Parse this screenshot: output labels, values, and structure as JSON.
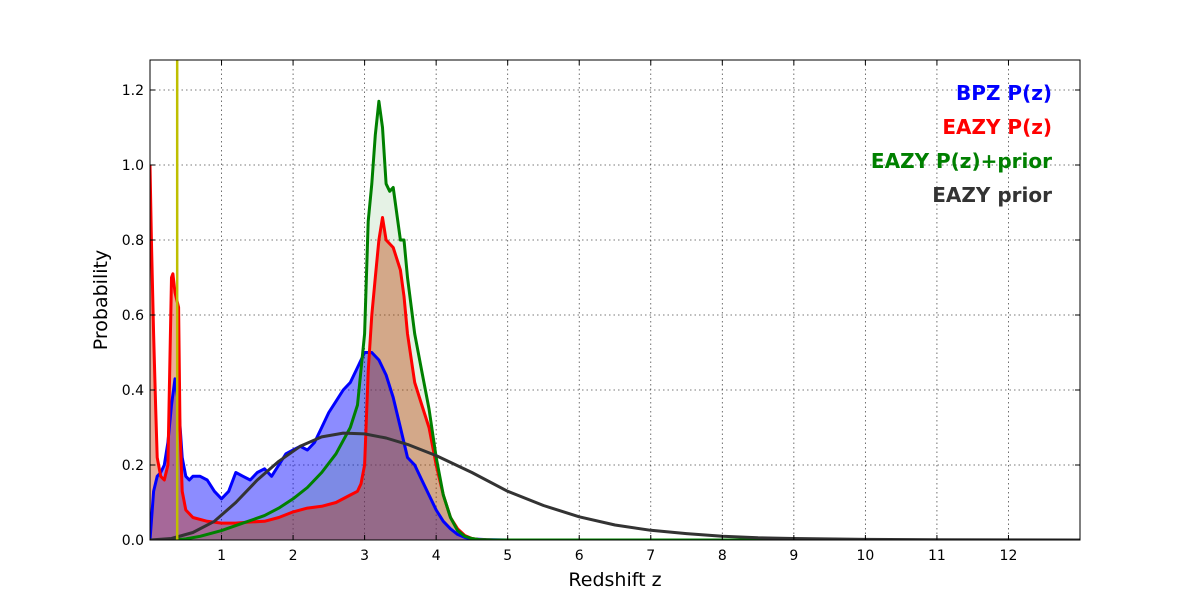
{
  "chart_data": {
    "type": "area",
    "xlabel": "Redshift z",
    "ylabel": "Probability",
    "xlim": [
      0,
      13
    ],
    "ylim": [
      0,
      1.28
    ],
    "x_ticks": [
      1,
      2,
      3,
      4,
      5,
      6,
      7,
      8,
      9,
      10,
      11,
      12
    ],
    "y_ticks": [
      0.0,
      0.2,
      0.4,
      0.6,
      0.8,
      1.0,
      1.2
    ],
    "y_tick_labels": [
      "0.0",
      "0.2",
      "0.4",
      "0.6",
      "0.8",
      "1.0",
      "1.2"
    ],
    "grid": true,
    "legend_placement": "top-right",
    "vline": {
      "x": 0.38,
      "color": "#bfbf00"
    },
    "series": [
      {
        "name": "BPZ P(z)",
        "color": "#0000ff",
        "fill": "#0000ff",
        "fill_opacity": 0.45,
        "x": [
          0,
          0.05,
          0.1,
          0.15,
          0.2,
          0.25,
          0.3,
          0.35,
          0.4,
          0.45,
          0.5,
          0.55,
          0.6,
          0.7,
          0.8,
          0.9,
          1.0,
          1.1,
          1.2,
          1.3,
          1.4,
          1.5,
          1.6,
          1.7,
          1.8,
          1.9,
          2.0,
          2.1,
          2.2,
          2.3,
          2.4,
          2.5,
          2.6,
          2.7,
          2.8,
          2.9,
          3.0,
          3.1,
          3.2,
          3.3,
          3.4,
          3.5,
          3.6,
          3.7,
          3.8,
          3.9,
          4.0,
          4.1,
          4.2,
          4.3,
          4.4,
          4.5,
          4.7,
          5.0
        ],
        "values": [
          0.0,
          0.13,
          0.17,
          0.18,
          0.2,
          0.26,
          0.36,
          0.43,
          0.36,
          0.22,
          0.17,
          0.16,
          0.17,
          0.17,
          0.16,
          0.13,
          0.11,
          0.13,
          0.18,
          0.17,
          0.16,
          0.18,
          0.19,
          0.17,
          0.2,
          0.23,
          0.24,
          0.25,
          0.24,
          0.26,
          0.3,
          0.34,
          0.37,
          0.4,
          0.42,
          0.46,
          0.5,
          0.5,
          0.48,
          0.44,
          0.38,
          0.3,
          0.22,
          0.2,
          0.16,
          0.12,
          0.08,
          0.05,
          0.03,
          0.015,
          0.007,
          0.003,
          0.001,
          0.0
        ]
      },
      {
        "name": "EAZY P(z)",
        "color": "#ff0000",
        "fill": "#cc3300",
        "fill_opacity": 0.4,
        "x": [
          0,
          0.02,
          0.05,
          0.08,
          0.1,
          0.15,
          0.2,
          0.25,
          0.3,
          0.32,
          0.35,
          0.4,
          0.42,
          0.45,
          0.5,
          0.6,
          0.8,
          1.0,
          1.2,
          1.4,
          1.6,
          1.8,
          2.0,
          2.2,
          2.4,
          2.6,
          2.8,
          2.9,
          2.95,
          3.0,
          3.05,
          3.1,
          3.15,
          3.2,
          3.25,
          3.3,
          3.4,
          3.5,
          3.55,
          3.6,
          3.7,
          3.8,
          3.9,
          4.0,
          4.1,
          4.2,
          4.3,
          4.4,
          4.5,
          4.6,
          4.8,
          5.0
        ],
        "values": [
          1.0,
          0.8,
          0.55,
          0.35,
          0.22,
          0.17,
          0.16,
          0.2,
          0.7,
          0.71,
          0.66,
          0.62,
          0.3,
          0.13,
          0.08,
          0.06,
          0.05,
          0.045,
          0.045,
          0.048,
          0.05,
          0.06,
          0.075,
          0.085,
          0.09,
          0.1,
          0.12,
          0.13,
          0.15,
          0.2,
          0.45,
          0.6,
          0.7,
          0.8,
          0.86,
          0.8,
          0.78,
          0.72,
          0.65,
          0.55,
          0.42,
          0.36,
          0.3,
          0.2,
          0.12,
          0.06,
          0.03,
          0.012,
          0.004,
          0.001,
          0.0,
          0.0
        ]
      },
      {
        "name": "EAZY P(z)+prior",
        "color": "#008000",
        "fill": "#008000",
        "fill_opacity": 0.1,
        "x": [
          0,
          0.3,
          0.4,
          0.5,
          0.7,
          1.0,
          1.3,
          1.6,
          1.8,
          2.0,
          2.2,
          2.4,
          2.6,
          2.8,
          2.9,
          3.0,
          3.05,
          3.1,
          3.15,
          3.2,
          3.25,
          3.3,
          3.35,
          3.4,
          3.5,
          3.55,
          3.6,
          3.7,
          3.8,
          3.9,
          4.0,
          4.1,
          4.2,
          4.3,
          4.4,
          4.5,
          4.6,
          4.8,
          5.0,
          13
        ],
        "values": [
          0.0,
          0.0,
          0.001,
          0.003,
          0.01,
          0.025,
          0.045,
          0.065,
          0.085,
          0.11,
          0.14,
          0.18,
          0.23,
          0.3,
          0.36,
          0.55,
          0.85,
          0.95,
          1.08,
          1.17,
          1.1,
          0.95,
          0.93,
          0.94,
          0.8,
          0.8,
          0.7,
          0.55,
          0.45,
          0.35,
          0.22,
          0.12,
          0.06,
          0.025,
          0.01,
          0.004,
          0.001,
          0.0,
          0.0,
          0.0
        ]
      },
      {
        "name": "EAZY prior",
        "color": "#333333",
        "fill": "none",
        "fill_opacity": 0,
        "x": [
          0,
          0.3,
          0.6,
          0.9,
          1.2,
          1.5,
          1.8,
          2.1,
          2.4,
          2.7,
          3.0,
          3.3,
          3.6,
          4.0,
          4.5,
          5.0,
          5.5,
          6.0,
          6.5,
          7.0,
          7.5,
          8.0,
          8.5,
          9.0,
          10.0,
          11.0,
          12.0,
          13.0
        ],
        "values": [
          0.0,
          0.004,
          0.02,
          0.05,
          0.1,
          0.16,
          0.21,
          0.25,
          0.275,
          0.285,
          0.283,
          0.272,
          0.255,
          0.225,
          0.18,
          0.13,
          0.092,
          0.062,
          0.04,
          0.026,
          0.017,
          0.01,
          0.006,
          0.004,
          0.0015,
          0.0005,
          0.0002,
          0.0
        ]
      }
    ]
  }
}
